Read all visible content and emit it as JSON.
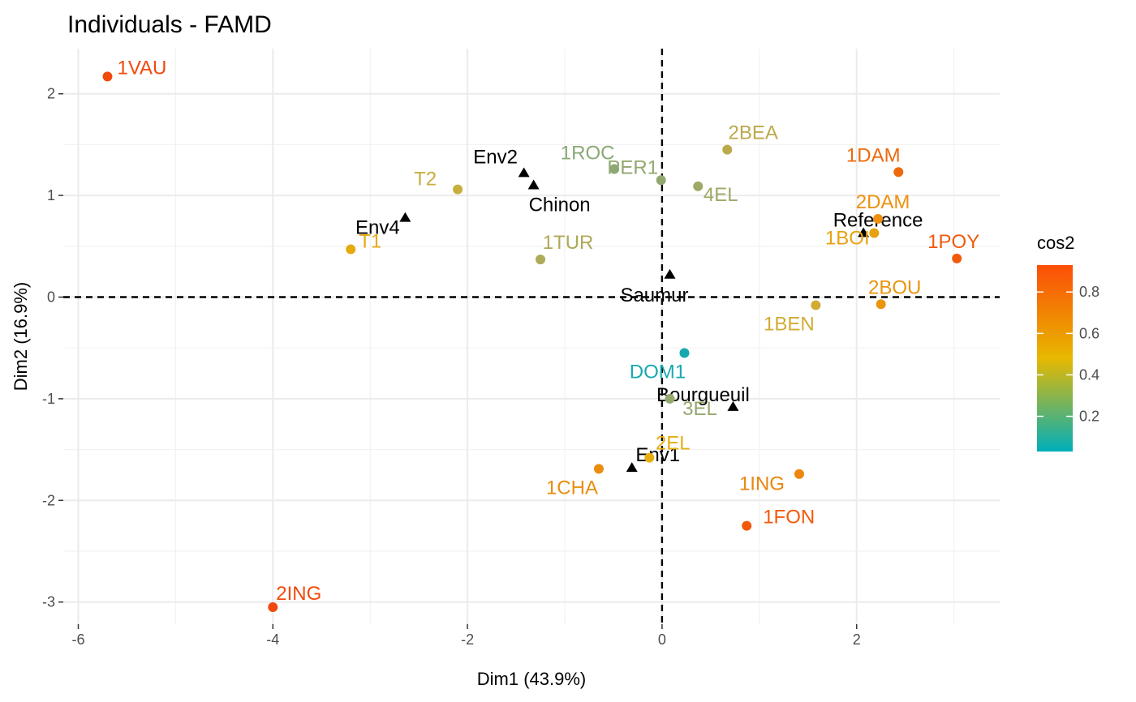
{
  "chart_data": {
    "type": "scatter",
    "title": "Individuals - FAMD",
    "xlabel": "Dim1 (43.9%)",
    "ylabel": "Dim2 (16.9%)",
    "xlim": [
      -6.1,
      3.48
    ],
    "ylim": [
      -3.3,
      2.45
    ],
    "xticks": [
      -6,
      -4,
      -2,
      0,
      2
    ],
    "yticks": [
      -3,
      -2,
      -1,
      0,
      1,
      2
    ],
    "grid": true,
    "reference_lines": {
      "x": 0,
      "y": 0,
      "style": "dashed"
    },
    "legend": {
      "title": "cos2",
      "placement": "right",
      "ticks": [
        0.2,
        0.4,
        0.6,
        0.8
      ],
      "range": [
        0.03,
        0.93
      ],
      "gradient_colors": [
        "#00AFBB",
        "#E7B800",
        "#FC4E07"
      ]
    },
    "individuals": [
      {
        "label": "1VAU",
        "x": -5.7,
        "y": 2.17,
        "cos2": 0.91,
        "color": "#F2490C"
      },
      {
        "label": "2ING",
        "x": -4.0,
        "y": -3.05,
        "cos2": 0.92,
        "color": "#F24A0D"
      },
      {
        "label": "T1",
        "x": -3.2,
        "y": 0.47,
        "cos2": 0.5,
        "color": "#E6AA0F"
      },
      {
        "label": "T2",
        "x": -2.1,
        "y": 1.06,
        "cos2": 0.42,
        "color": "#C8AE3E"
      },
      {
        "label": "1ROC",
        "x": -0.49,
        "y": 1.26,
        "cos2": 0.3,
        "color": "#8AA874"
      },
      {
        "label": "PER1",
        "x": -0.01,
        "y": 1.15,
        "cos2": 0.33,
        "color": "#91A870"
      },
      {
        "label": "4EL",
        "x": 0.37,
        "y": 1.09,
        "cos2": 0.36,
        "color": "#9FA866"
      },
      {
        "label": "2BEA",
        "x": 0.67,
        "y": 1.45,
        "cos2": 0.42,
        "color": "#BCA94B"
      },
      {
        "label": "1TUR",
        "x": -1.25,
        "y": 0.37,
        "cos2": 0.38,
        "color": "#AEAA58"
      },
      {
        "label": "1DAM",
        "x": 2.43,
        "y": 1.23,
        "cos2": 0.83,
        "color": "#EE6A0D"
      },
      {
        "label": "2DAM",
        "x": 2.22,
        "y": 0.77,
        "cos2": 0.62,
        "color": "#EE900E"
      },
      {
        "label": "1BOI",
        "x": 2.18,
        "y": 0.63,
        "cos2": 0.55,
        "color": "#E8A10F"
      },
      {
        "label": "1POY",
        "x": 3.03,
        "y": 0.38,
        "cos2": 0.86,
        "color": "#F15A0C"
      },
      {
        "label": "2BOU",
        "x": 2.25,
        "y": -0.07,
        "cos2": 0.6,
        "color": "#EA950E"
      },
      {
        "label": "1BEN",
        "x": 1.58,
        "y": -0.08,
        "cos2": 0.44,
        "color": "#D1AC35"
      },
      {
        "label": "DOM1",
        "x": 0.23,
        "y": -0.55,
        "cos2": 0.05,
        "color": "#18A8B0"
      },
      {
        "label": "3EL",
        "x": 0.08,
        "y": -1.0,
        "cos2": 0.33,
        "color": "#94A86D"
      },
      {
        "label": "2EL",
        "x": -0.13,
        "y": -1.58,
        "cos2": 0.52,
        "color": "#E5AF11"
      },
      {
        "label": "1CHA",
        "x": -0.65,
        "y": -1.69,
        "cos2": 0.62,
        "color": "#EA8E0F"
      },
      {
        "label": "1ING",
        "x": 1.41,
        "y": -1.74,
        "cos2": 0.68,
        "color": "#EC860F"
      },
      {
        "label": "1FON",
        "x": 0.87,
        "y": -2.25,
        "cos2": 0.86,
        "color": "#F25A0B"
      }
    ],
    "supplementary_points": [
      {
        "label": "Env2",
        "x": -1.42,
        "y": 1.22
      },
      {
        "label": "Chinon",
        "x": -1.32,
        "y": 1.1
      },
      {
        "label": "Env4",
        "x": -2.64,
        "y": 0.78
      },
      {
        "label": "Saumur",
        "x": 0.08,
        "y": 0.22
      },
      {
        "label": "Reference",
        "x": 2.07,
        "y": 0.63
      },
      {
        "label": "Bourgueuil",
        "x": 0.73,
        "y": -1.08
      },
      {
        "label": "Env1",
        "x": -0.31,
        "y": -1.68
      }
    ]
  }
}
